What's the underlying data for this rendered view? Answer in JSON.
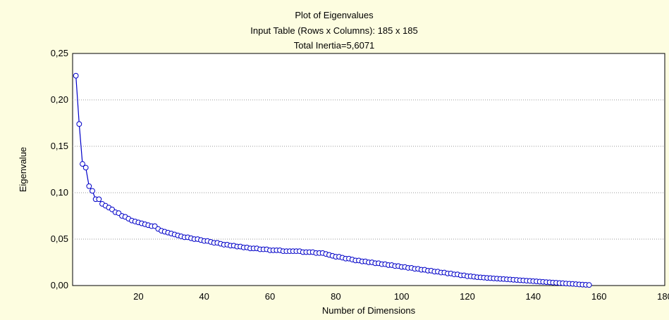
{
  "chart_data": {
    "type": "line",
    "title": [
      "Plot of Eigenvalues",
      "Input Table (Rows x Columns): 185 x 185",
      "Total Inertia=5,6071"
    ],
    "xlabel": "Number of Dimensions",
    "ylabel": "Eigenvalue",
    "xlim": [
      0,
      180
    ],
    "ylim": [
      0,
      0.25
    ],
    "x_ticks": [
      "20",
      "40",
      "60",
      "80",
      "100",
      "120",
      "140",
      "160",
      "180"
    ],
    "y_ticks": [
      "0,00",
      "0,05",
      "0,10",
      "0,15",
      "0,20",
      "0,25"
    ],
    "grid": "horizontal",
    "series_color": "#0000c8",
    "series": [
      {
        "x_start": 1,
        "values": [
          0.226,
          0.174,
          0.131,
          0.127,
          0.107,
          0.102,
          0.093,
          0.093,
          0.088,
          0.086,
          0.084,
          0.082,
          0.079,
          0.078,
          0.075,
          0.074,
          0.072,
          0.07,
          0.069,
          0.068,
          0.067,
          0.066,
          0.065,
          0.064,
          0.064,
          0.061,
          0.059,
          0.058,
          0.057,
          0.056,
          0.055,
          0.054,
          0.053,
          0.052,
          0.052,
          0.051,
          0.05,
          0.05,
          0.049,
          0.048,
          0.048,
          0.047,
          0.046,
          0.046,
          0.045,
          0.044,
          0.044,
          0.043,
          0.043,
          0.042,
          0.042,
          0.041,
          0.041,
          0.04,
          0.04,
          0.04,
          0.039,
          0.039,
          0.039,
          0.038,
          0.038,
          0.038,
          0.038,
          0.037,
          0.037,
          0.037,
          0.037,
          0.037,
          0.037,
          0.036,
          0.036,
          0.036,
          0.036,
          0.035,
          0.035,
          0.035,
          0.034,
          0.033,
          0.032,
          0.031,
          0.031,
          0.03,
          0.029,
          0.029,
          0.028,
          0.027,
          0.027,
          0.026,
          0.026,
          0.025,
          0.025,
          0.024,
          0.024,
          0.023,
          0.023,
          0.022,
          0.022,
          0.021,
          0.021,
          0.02,
          0.02,
          0.019,
          0.019,
          0.018,
          0.018,
          0.017,
          0.017,
          0.016,
          0.016,
          0.015,
          0.015,
          0.014,
          0.014,
          0.013,
          0.013,
          0.012,
          0.012,
          0.011,
          0.011,
          0.01,
          0.01,
          0.0095,
          0.009,
          0.0088,
          0.0085,
          0.0082,
          0.008,
          0.0077,
          0.0075,
          0.0072,
          0.007,
          0.0067,
          0.0065,
          0.0062,
          0.006,
          0.0057,
          0.0055,
          0.0052,
          0.005,
          0.0047,
          0.0045,
          0.0042,
          0.004,
          0.0037,
          0.0035,
          0.0032,
          0.003,
          0.0027,
          0.0025,
          0.0022,
          0.002,
          0.0018,
          0.0015,
          0.0012,
          0.001,
          0.0008,
          0.0006
        ]
      }
    ]
  }
}
